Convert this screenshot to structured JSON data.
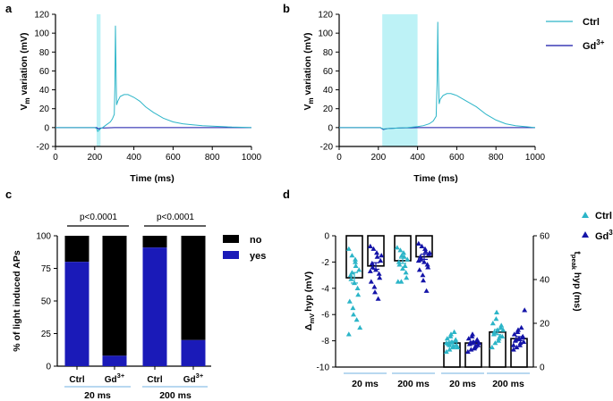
{
  "colors": {
    "ctrl": "#2cb5c8",
    "gd": "#1414a8",
    "light": "#bdf2f6",
    "yes_bar": "#1a1ab8",
    "no_bar": "#000000",
    "group_line": "#b8d8f0"
  },
  "chart_data": [
    {
      "panel": "a",
      "type": "line",
      "xlabel": "Time (ms)",
      "ylabel_main": "V",
      "ylabel_sub": "m",
      "ylabel_rest": " variation (mV)",
      "xlim": [
        0,
        1000
      ],
      "ylim": [
        -20,
        120
      ],
      "xticks": [
        "0",
        "200",
        "400",
        "600",
        "800",
        "1000"
      ],
      "yticks": [
        "-20",
        "0",
        "20",
        "40",
        "60",
        "80",
        "100",
        "120"
      ],
      "light_window": [
        210,
        230
      ],
      "series": [
        {
          "name": "Ctrl",
          "x": [
            0,
            200,
            210,
            215,
            222,
            230,
            240,
            260,
            280,
            290,
            300,
            303,
            306,
            309,
            312,
            318,
            330,
            350,
            370,
            380,
            400,
            430,
            460,
            500,
            550,
            600,
            650,
            700,
            750,
            800,
            850,
            900,
            950,
            1000
          ],
          "y": [
            0,
            0,
            -1,
            -4,
            -3,
            -1,
            0,
            3,
            6,
            9,
            14,
            45,
            108,
            60,
            24,
            28,
            33,
            35,
            35,
            34,
            32,
            28,
            22,
            16,
            10,
            6,
            4,
            3,
            2,
            1.5,
            1,
            0.5,
            0.3,
            0
          ]
        },
        {
          "name": "Gd3+",
          "x": [
            0,
            210,
            220,
            230,
            300,
            500,
            700,
            1000
          ],
          "y": [
            0,
            0,
            -1.5,
            -0.5,
            0,
            0,
            0,
            0
          ]
        }
      ]
    },
    {
      "panel": "b",
      "type": "line",
      "xlabel": "Time (ms)",
      "ylabel_main": "V",
      "ylabel_sub": "m",
      "ylabel_rest": " variation (mV)",
      "xlim": [
        0,
        1000
      ],
      "ylim": [
        -20,
        120
      ],
      "xticks": [
        "0",
        "200",
        "400",
        "600",
        "800",
        "1000"
      ],
      "yticks": [
        "-20",
        "0",
        "20",
        "40",
        "60",
        "80",
        "100",
        "120"
      ],
      "light_window": [
        220,
        400
      ],
      "legend": [
        {
          "label": "Ctrl",
          "sup": ""
        },
        {
          "label": "Gd",
          "sup": "3+"
        }
      ],
      "series": [
        {
          "name": "Ctrl",
          "x": [
            0,
            210,
            225,
            260,
            300,
            350,
            400,
            430,
            460,
            480,
            495,
            500,
            503,
            506,
            510,
            516,
            530,
            550,
            570,
            600,
            650,
            700,
            750,
            800,
            850,
            900,
            1000
          ],
          "y": [
            0,
            0,
            -1.5,
            -1,
            -0.5,
            0,
            1,
            2,
            4,
            7,
            12,
            50,
            112,
            60,
            25,
            30,
            34,
            36,
            36,
            34,
            28,
            22,
            14,
            8,
            4,
            2,
            0
          ]
        },
        {
          "name": "Gd3+",
          "x": [
            0,
            210,
            225,
            250,
            300,
            400,
            500,
            700,
            1000
          ],
          "y": [
            0,
            0,
            -2,
            -1,
            -0.5,
            0,
            0,
            0,
            0
          ]
        }
      ]
    },
    {
      "panel": "c",
      "type": "bar",
      "ylabel": "% of light induced APs",
      "ylim": [
        0,
        100
      ],
      "yticks": [
        "0",
        "25",
        "50",
        "75",
        "100"
      ],
      "categories": [
        {
          "label": "Ctrl",
          "sup": ""
        },
        {
          "label": "Gd",
          "sup": "3+"
        },
        {
          "label": "Ctrl",
          "sup": ""
        },
        {
          "label": "Gd",
          "sup": "3+"
        }
      ],
      "series": [
        {
          "name": "yes",
          "values": [
            80,
            8,
            91,
            20
          ]
        },
        {
          "name": "no",
          "values": [
            20,
            92,
            9,
            80
          ]
        }
      ],
      "legend": [
        "no",
        "yes"
      ],
      "groups": [
        "20 ms",
        "200 ms"
      ],
      "pvalues": [
        "p<0.0001",
        "p<0.0001"
      ]
    },
    {
      "panel": "d",
      "type": "bar+scatter",
      "ylabel_left": "hyp (mV)",
      "ylabel_left_prefix": "Δ",
      "ylabel_left_sub": "mV",
      "ylabel_right_main": "t",
      "ylabel_right_sub": "peak",
      "ylabel_right_rest": " hyp (ms)",
      "ylim_left": [
        -10,
        0
      ],
      "yticks_left": [
        "-10",
        "-8",
        "-6",
        "-4",
        "-2",
        "0"
      ],
      "ylim_right": [
        0,
        60
      ],
      "yticks_right": [
        "0",
        "20",
        "40",
        "60"
      ],
      "legend": [
        {
          "label": "Ctrl",
          "sup": ""
        },
        {
          "label": "Gd",
          "sup": "3+"
        }
      ],
      "groups": [
        "20 ms",
        "200 ms",
        "20 ms",
        "200 ms"
      ],
      "bars": [
        {
          "group": "20 ms",
          "series": "Ctrl",
          "axis": "left",
          "value": -3.2,
          "sem": 0.4,
          "points": [
            -1.0,
            -1.5,
            -2.0,
            -2.3,
            -2.6,
            -3.0,
            -3.3,
            -3.6,
            -4.0,
            -4.5,
            -5.0,
            -5.5,
            -6.0,
            -6.4,
            -7.0,
            -7.5,
            -2.8,
            -1.8
          ]
        },
        {
          "group": "20 ms",
          "series": "Gd3+",
          "axis": "left",
          "value": -2.3,
          "sem": 0.25,
          "points": [
            -0.8,
            -1.0,
            -1.3,
            -1.6,
            -1.9,
            -2.1,
            -2.4,
            -2.6,
            -2.9,
            -3.2,
            -3.5,
            -3.9,
            -4.3,
            -4.8,
            -1.5,
            -2.7
          ]
        },
        {
          "group": "200 ms",
          "series": "Ctrl",
          "axis": "left",
          "value": -1.9,
          "sem": 0.2,
          "points": [
            -0.9,
            -1.1,
            -1.3,
            -1.6,
            -1.8,
            -2.0,
            -2.2,
            -2.5,
            -2.8,
            -3.2,
            -3.5,
            -3.5,
            -1.5,
            -2.3
          ]
        },
        {
          "group": "200 ms",
          "series": "Gd3+",
          "axis": "left",
          "value": -1.6,
          "sem": 0.2,
          "points": [
            -0.6,
            -0.8,
            -1.0,
            -1.2,
            -1.4,
            -1.6,
            -1.8,
            -2.0,
            -2.2,
            -2.4,
            -2.6,
            -3.0,
            -3.4,
            -4.2,
            -1.3,
            -1.9
          ]
        },
        {
          "group": "20 ms",
          "series": "Ctrl",
          "axis": "right",
          "value": 11,
          "sem": 0.8,
          "points": [
            7,
            8,
            9,
            9.5,
            10,
            10.5,
            11,
            11.5,
            12,
            12.5,
            13,
            14,
            15,
            16,
            9,
            11,
            10
          ]
        },
        {
          "group": "20 ms",
          "series": "Gd3+",
          "axis": "right",
          "value": 11,
          "sem": 0.7,
          "points": [
            7,
            8,
            8.5,
            9,
            10,
            10.5,
            11,
            11.5,
            12,
            12.5,
            13,
            14,
            15,
            9.5,
            11
          ]
        },
        {
          "group": "200 ms",
          "series": "Ctrl",
          "axis": "right",
          "value": 16,
          "sem": 1.2,
          "points": [
            9,
            11,
            12,
            13,
            14,
            15,
            16,
            17,
            18,
            19,
            20,
            22,
            25,
            14,
            17
          ]
        },
        {
          "group": "200 ms",
          "series": "Gd3+",
          "axis": "right",
          "value": 13,
          "sem": 0.9,
          "points": [
            8,
            9,
            10,
            11,
            11.5,
            12,
            12.5,
            13,
            13.5,
            14,
            15,
            16,
            17,
            18,
            26,
            10
          ]
        }
      ]
    }
  ]
}
